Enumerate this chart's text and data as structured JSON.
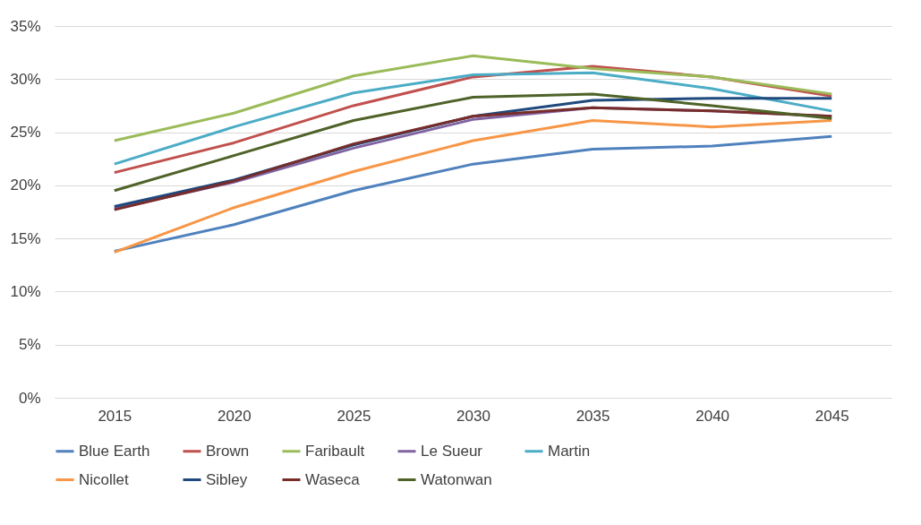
{
  "chart_data": {
    "type": "line",
    "categories": [
      "2015",
      "2020",
      "2025",
      "2030",
      "2035",
      "2040",
      "2045"
    ],
    "ylim": [
      0,
      35
    ],
    "yticks": [
      {
        "value": 0,
        "label": "0%"
      },
      {
        "value": 5,
        "label": "5%"
      },
      {
        "value": 10,
        "label": "10%"
      },
      {
        "value": 15,
        "label": "15%"
      },
      {
        "value": 20,
        "label": "20%"
      },
      {
        "value": 25,
        "label": "25%"
      },
      {
        "value": 30,
        "label": "30%"
      },
      {
        "value": 35,
        "label": "35%"
      }
    ],
    "grid": "y",
    "legend": "bottom",
    "marker": "none",
    "line_style": "solid",
    "series": [
      {
        "name": "Blue Earth",
        "color": "#4f81bd",
        "values": [
          13.8,
          16.3,
          19.5,
          22.0,
          23.4,
          23.7,
          24.6
        ]
      },
      {
        "name": "Brown",
        "color": "#c0504d",
        "values": [
          21.2,
          24.0,
          27.5,
          30.2,
          31.2,
          30.2,
          28.4
        ]
      },
      {
        "name": "Faribault",
        "color": "#9bbb59",
        "values": [
          24.2,
          26.8,
          30.3,
          32.2,
          31.0,
          30.2,
          28.6
        ]
      },
      {
        "name": "Le Sueur",
        "color": "#8064a2",
        "values": [
          17.8,
          20.3,
          23.5,
          26.2,
          27.3,
          27.0,
          26.5
        ]
      },
      {
        "name": "Martin",
        "color": "#4bacc6",
        "values": [
          22.0,
          25.5,
          28.7,
          30.4,
          30.6,
          29.1,
          27.0
        ]
      },
      {
        "name": "Nicollet",
        "color": "#f79646",
        "values": [
          13.7,
          17.9,
          21.3,
          24.2,
          26.1,
          25.5,
          26.1
        ]
      },
      {
        "name": "Sibley",
        "color": "#1f497d",
        "values": [
          18.0,
          20.5,
          23.8,
          26.5,
          28.0,
          28.2,
          28.2
        ]
      },
      {
        "name": "Waseca",
        "color": "#772c2a",
        "values": [
          17.7,
          20.4,
          23.9,
          26.5,
          27.3,
          27.0,
          26.5
        ]
      },
      {
        "name": "Watonwan",
        "color": "#4f6228",
        "values": [
          19.5,
          22.8,
          26.1,
          28.3,
          28.6,
          27.5,
          26.3
        ]
      }
    ]
  }
}
